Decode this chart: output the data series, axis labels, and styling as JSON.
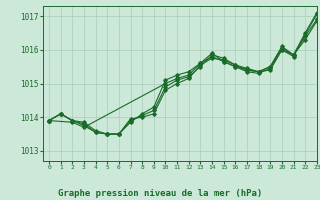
{
  "title": "Graphe pression niveau de la mer (hPa)",
  "xlim": [
    -0.5,
    23
  ],
  "ylim": [
    1012.7,
    1017.3
  ],
  "yticks": [
    1013,
    1014,
    1015,
    1016,
    1017
  ],
  "xticks": [
    0,
    1,
    2,
    3,
    4,
    5,
    6,
    7,
    8,
    9,
    10,
    11,
    12,
    13,
    14,
    15,
    16,
    17,
    18,
    19,
    20,
    21,
    22,
    23
  ],
  "background_color": "#cce8d8",
  "line_color": "#1a6b2a",
  "grid_color": "#aaccb8",
  "series": [
    {
      "x": [
        0,
        1,
        2,
        3,
        4,
        5,
        6,
        7,
        8,
        9,
        10,
        11,
        12,
        13,
        14,
        15,
        16,
        17,
        18,
        19,
        20,
        21,
        22,
        23
      ],
      "y": [
        1013.9,
        1014.1,
        1013.9,
        1013.75,
        1013.55,
        1013.5,
        1013.5,
        1013.95,
        1014.0,
        1014.1,
        1014.8,
        1015.0,
        1015.15,
        1015.55,
        1015.75,
        1015.7,
        1015.55,
        1015.4,
        1015.35,
        1015.4,
        1016.0,
        1015.8,
        1016.45,
        1017.05
      ]
    },
    {
      "x": [
        0,
        1,
        2,
        3,
        4,
        5,
        6,
        7,
        8,
        9,
        10,
        11,
        12,
        13,
        14,
        15,
        16,
        17,
        18,
        19,
        20,
        21,
        22,
        23
      ],
      "y": [
        1013.9,
        1014.1,
        1013.9,
        1013.8,
        1013.55,
        1013.5,
        1013.5,
        1013.9,
        1014.05,
        1014.2,
        1014.9,
        1015.1,
        1015.2,
        1015.5,
        1015.85,
        1015.75,
        1015.55,
        1015.45,
        1015.35,
        1015.5,
        1016.1,
        1015.85,
        1016.3,
        1016.85
      ]
    },
    {
      "x": [
        0,
        2,
        3,
        10,
        11,
        12,
        13,
        14,
        15,
        16,
        17,
        18,
        19,
        20,
        21,
        22,
        23
      ],
      "y": [
        1013.9,
        1013.85,
        1013.7,
        1015.0,
        1015.15,
        1015.25,
        1015.6,
        1015.8,
        1015.65,
        1015.5,
        1015.35,
        1015.3,
        1015.45,
        1016.0,
        1015.85,
        1016.5,
        1017.1
      ]
    },
    {
      "x": [
        0,
        1,
        2,
        3,
        4,
        5,
        6,
        7,
        8,
        9,
        10,
        11,
        12,
        13,
        14,
        15,
        16,
        17,
        18,
        19,
        20,
        21,
        22,
        23
      ],
      "y": [
        1013.9,
        1014.1,
        1013.9,
        1013.85,
        1013.6,
        1013.5,
        1013.5,
        1013.85,
        1014.1,
        1014.3,
        1015.1,
        1015.25,
        1015.35,
        1015.6,
        1015.9,
        1015.65,
        1015.5,
        1015.4,
        1015.35,
        1015.5,
        1016.05,
        1015.85,
        1016.4,
        1016.9
      ]
    }
  ]
}
